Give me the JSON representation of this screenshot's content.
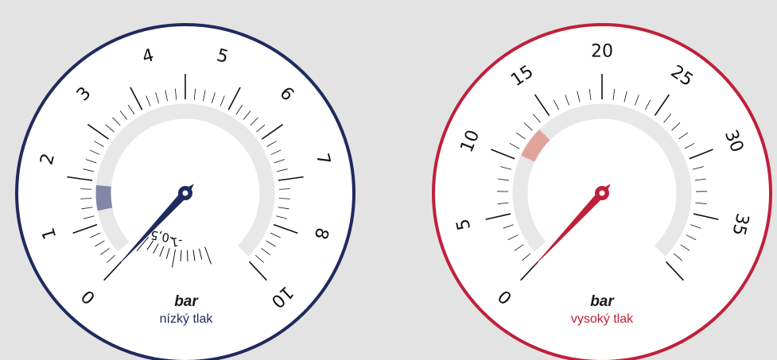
{
  "gauges": [
    {
      "subtitle": "nízký tlak",
      "unit": "bar",
      "accent": "#1f2a5e",
      "highlight": "#8486a9",
      "needle_value": 0,
      "main_scale": {
        "min": 0,
        "max": 10,
        "labels": [
          "0",
          "1",
          "2",
          "3",
          "4",
          "5",
          "6",
          "7",
          "8",
          "10"
        ],
        "highlight_range": [
          1.3,
          1.9
        ]
      },
      "vacuum_scale": {
        "labels": [
          "-0,5",
          "-1"
        ]
      }
    },
    {
      "subtitle": "vysoký tlak",
      "unit": "bar",
      "accent": "#c0203a",
      "highlight": "#e0a49a",
      "needle_value": 0,
      "main_scale": {
        "min": 0,
        "max": 40,
        "labels": [
          "0",
          "5",
          "10",
          "15",
          "20",
          "25",
          "30",
          "35"
        ],
        "highlight_range": [
          10.5,
          13.5
        ]
      }
    }
  ]
}
